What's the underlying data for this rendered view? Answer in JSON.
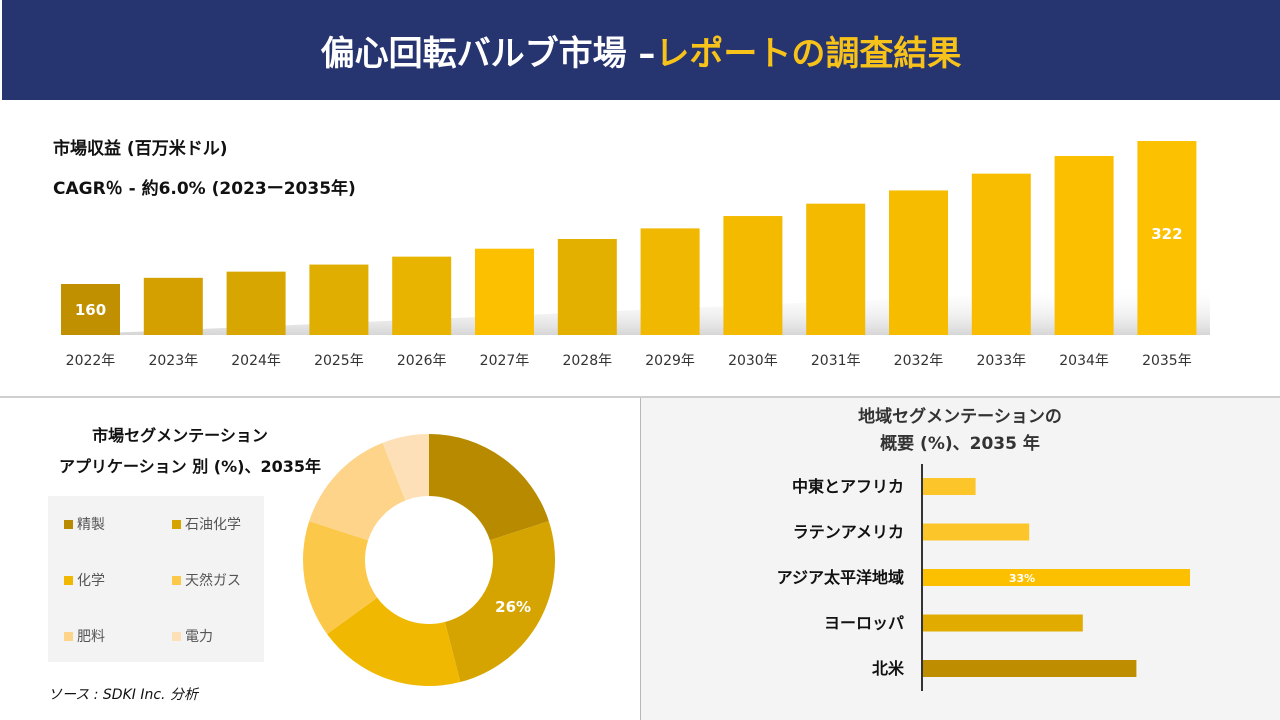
{
  "header": {
    "title_main": "偏心回転バルブ市場 –",
    "title_highlight": "レポートの調査結果"
  },
  "revenue": {
    "subtitle": "市場収益 (百万米ドル)",
    "cagr": "CAGR％ - 約6.0% (2023ー2035年)"
  },
  "chart_data": [
    {
      "type": "bar",
      "title": "市場収益 (百万米ドル)",
      "categories": [
        "2022年",
        "2023年",
        "2024年",
        "2025年",
        "2026年",
        "2027年",
        "2028年",
        "2029年",
        "2030年",
        "2031年",
        "2032年",
        "2033年",
        "2034年",
        "2035年"
      ],
      "values": [
        160,
        167,
        174,
        182,
        191,
        200,
        211,
        223,
        237,
        251,
        266,
        285,
        305,
        322
      ],
      "data_labels": {
        "0": "160",
        "13": "322"
      },
      "colors": [
        "#c09000",
        "#d3a000",
        "#d8a600",
        "#e0ae00",
        "#e8b400",
        "#fcc000",
        "#e4b000",
        "#f0b800",
        "#f3ba00",
        "#f3ba00",
        "#f5bc00",
        "#f8bd00",
        "#fbbf00",
        "#fcc100"
      ],
      "grid": false
    },
    {
      "type": "pie",
      "title": "市場セグメンテーション アプリケーション別 (%)、2035年",
      "categories": [
        "精製",
        "石油化学",
        "化学",
        "天然ガス",
        "肥料",
        "電力"
      ],
      "values": [
        20,
        26,
        19,
        15,
        14,
        6
      ],
      "data_labels": {
        "1": "26%"
      },
      "colors": [
        "#b88a00",
        "#d6a400",
        "#f0b800",
        "#fcc84a",
        "#fdd48a",
        "#fde0b8"
      ],
      "legend": "left"
    },
    {
      "type": "bar",
      "orientation": "horizontal",
      "title": "地域セグメンテーションの 概要 (%)、2035 年",
      "categories": [
        "中東とアフリカ",
        "ラテンアメリカ",
        "アジア太平洋地域",
        "ヨーロッパ",
        "北米"
      ],
      "values": [
        6.6,
        13.2,
        33,
        19.8,
        26.4
      ],
      "data_labels": {
        "2": "33%"
      },
      "colors": [
        "#fcc62a",
        "#fcc62a",
        "#fcc000",
        "#e2ab00",
        "#bf8e00"
      ]
    }
  ],
  "pie_title": {
    "line1": "市場セグメンテーション",
    "line2": "アプリケーション 別 (%)、2035年"
  },
  "region_title": {
    "line1": "地域セグメンテーションの",
    "line2": "概要 (%)、2035 年"
  },
  "source": "ソース : SDKI Inc. 分析"
}
